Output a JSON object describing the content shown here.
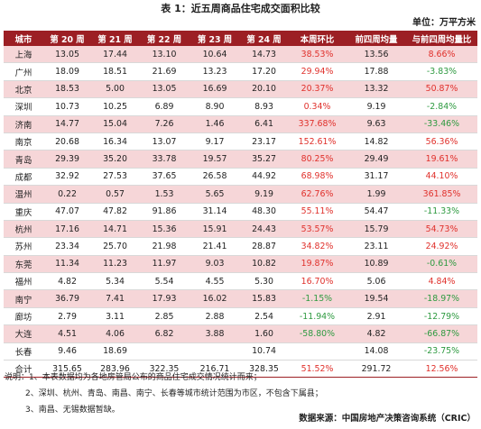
{
  "title": "表 1：近五周商品住宅成交面积比较",
  "unit": "单位：万平方米",
  "columns": [
    "城市",
    "第 20 周",
    "第 21 周",
    "第 22 周",
    "第 23 周",
    "第 24 周",
    "本周环比",
    "前四周均量",
    "与前四周均量比"
  ],
  "rows": [
    {
      "city": "上海",
      "w20": "13.05",
      "w21": "17.44",
      "w22": "13.10",
      "w23": "10.64",
      "w24": "14.73",
      "wow": "38.53%",
      "avg4": "13.56",
      "vs4": "8.66%",
      "band": true,
      "sep": false
    },
    {
      "city": "广州",
      "w20": "18.09",
      "w21": "18.51",
      "w22": "21.69",
      "w23": "13.23",
      "w24": "17.20",
      "wow": "29.94%",
      "avg4": "17.88",
      "vs4": "-3.83%",
      "band": false,
      "sep": false
    },
    {
      "city": "北京",
      "w20": "18.53",
      "w21": "5.00",
      "w22": "13.05",
      "w23": "16.69",
      "w24": "20.10",
      "wow": "20.37%",
      "avg4": "13.32",
      "vs4": "50.87%",
      "band": true,
      "sep": false
    },
    {
      "city": "深圳",
      "w20": "10.73",
      "w21": "10.25",
      "w22": "6.89",
      "w23": "8.90",
      "w24": "8.93",
      "wow": "0.34%",
      "avg4": "9.19",
      "vs4": "-2.84%",
      "band": false,
      "sep": false
    },
    {
      "city": "济南",
      "w20": "14.77",
      "w21": "15.04",
      "w22": "7.26",
      "w23": "1.46",
      "w24": "6.41",
      "wow": "337.68%",
      "avg4": "9.63",
      "vs4": "-33.46%",
      "band": true,
      "sep": true
    },
    {
      "city": "南京",
      "w20": "20.68",
      "w21": "16.34",
      "w22": "13.07",
      "w23": "9.17",
      "w24": "23.17",
      "wow": "152.61%",
      "avg4": "14.82",
      "vs4": "56.36%",
      "band": false,
      "sep": false
    },
    {
      "city": "青岛",
      "w20": "29.39",
      "w21": "35.20",
      "w22": "33.78",
      "w23": "19.57",
      "w24": "35.27",
      "wow": "80.25%",
      "avg4": "29.49",
      "vs4": "19.61%",
      "band": true,
      "sep": false
    },
    {
      "city": "成都",
      "w20": "32.92",
      "w21": "27.53",
      "w22": "37.65",
      "w23": "26.58",
      "w24": "44.92",
      "wow": "68.98%",
      "avg4": "31.17",
      "vs4": "44.10%",
      "band": false,
      "sep": false
    },
    {
      "city": "温州",
      "w20": "0.22",
      "w21": "0.57",
      "w22": "1.53",
      "w23": "5.65",
      "w24": "9.19",
      "wow": "62.76%",
      "avg4": "1.99",
      "vs4": "361.85%",
      "band": true,
      "sep": false
    },
    {
      "city": "重庆",
      "w20": "47.07",
      "w21": "47.82",
      "w22": "91.86",
      "w23": "31.14",
      "w24": "48.30",
      "wow": "55.11%",
      "avg4": "54.47",
      "vs4": "-11.33%",
      "band": false,
      "sep": false
    },
    {
      "city": "杭州",
      "w20": "17.16",
      "w21": "14.71",
      "w22": "15.36",
      "w23": "15.91",
      "w24": "24.43",
      "wow": "53.57%",
      "avg4": "15.79",
      "vs4": "54.73%",
      "band": true,
      "sep": false
    },
    {
      "city": "苏州",
      "w20": "23.34",
      "w21": "25.70",
      "w22": "21.98",
      "w23": "21.41",
      "w24": "28.87",
      "wow": "34.82%",
      "avg4": "23.11",
      "vs4": "24.92%",
      "band": false,
      "sep": false
    },
    {
      "city": "东莞",
      "w20": "11.34",
      "w21": "11.23",
      "w22": "11.97",
      "w23": "9.03",
      "w24": "10.82",
      "wow": "19.87%",
      "avg4": "10.89",
      "vs4": "-0.61%",
      "band": true,
      "sep": false
    },
    {
      "city": "福州",
      "w20": "4.82",
      "w21": "5.34",
      "w22": "5.54",
      "w23": "4.55",
      "w24": "5.30",
      "wow": "16.70%",
      "avg4": "5.06",
      "vs4": "4.84%",
      "band": false,
      "sep": false
    },
    {
      "city": "南宁",
      "w20": "36.79",
      "w21": "7.41",
      "w22": "17.93",
      "w23": "16.02",
      "w24": "15.83",
      "wow": "-1.15%",
      "avg4": "19.54",
      "vs4": "-18.97%",
      "band": true,
      "sep": false
    },
    {
      "city": "廊坊",
      "w20": "2.79",
      "w21": "3.11",
      "w22": "2.85",
      "w23": "2.88",
      "w24": "2.54",
      "wow": "-11.94%",
      "avg4": "2.91",
      "vs4": "-12.79%",
      "band": false,
      "sep": false
    },
    {
      "city": "大连",
      "w20": "4.51",
      "w21": "4.06",
      "w22": "6.82",
      "w23": "3.88",
      "w24": "1.60",
      "wow": "-58.80%",
      "avg4": "4.82",
      "vs4": "-66.87%",
      "band": true,
      "sep": false
    },
    {
      "city": "长春",
      "w20": "9.46",
      "w21": "18.69",
      "w22": "",
      "w23": "",
      "w24": "10.74",
      "wow": "",
      "avg4": "14.08",
      "vs4": "-23.75%",
      "band": false,
      "sep": false
    }
  ],
  "total": {
    "city": "合计",
    "w20": "315.65",
    "w21": "283.96",
    "w22": "322.35",
    "w23": "216.71",
    "w24": "328.35",
    "wow": "51.52%",
    "avg4": "291.72",
    "vs4": "12.56%"
  },
  "notes": [
    "说明：1、本表数据均为各地房管局公布的商品住宅成交情况统计而来；",
    "2、深圳、杭州、青岛、南昌、南宁、长春等城市统计范围为市区，不包含下属县；",
    "3、南昌、无锡数据暂缺。"
  ],
  "source": "数据来源：中国房地产决策咨询系统（CRIC）",
  "colors": {
    "header_bg": "#9c1f24",
    "band_bg": "#f6d6d8",
    "positive": "#e0302b",
    "negative": "#2e9a40"
  }
}
